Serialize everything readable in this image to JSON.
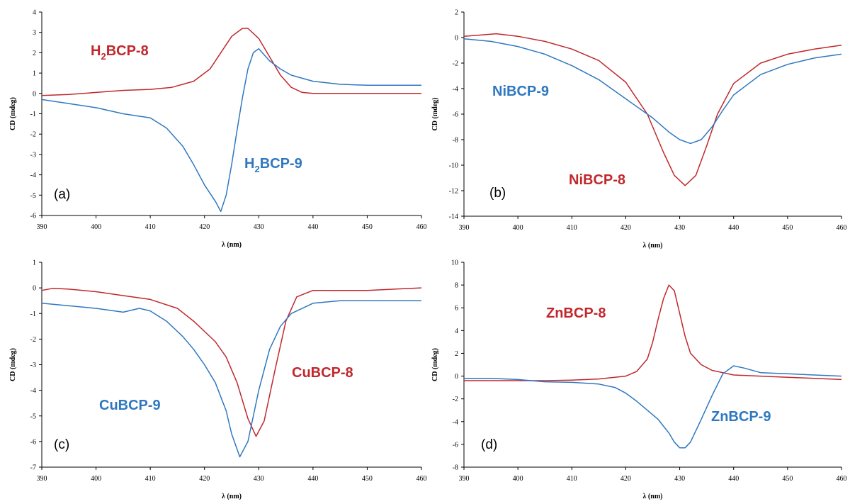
{
  "colors": {
    "red": "#c0282d",
    "blue": "#2f78c0",
    "axis": "#000000"
  },
  "chart_data": [
    {
      "type": "line",
      "panel_label": "(a)",
      "xlabel": "λ (nm)",
      "ylabel": "CD (mdeg)",
      "xlim": [
        390,
        460
      ],
      "ylim": [
        -6,
        4
      ],
      "xticks": [
        390,
        400,
        410,
        420,
        430,
        440,
        450,
        460
      ],
      "yticks": [
        -6,
        -5,
        -4,
        -3,
        -2,
        -1,
        0,
        1,
        2,
        3,
        4
      ],
      "series": [
        {
          "name": "H2BCP-8",
          "label_main": "H",
          "label_sub": "2",
          "label_rest": "BCP-8",
          "color": "red",
          "x": [
            390,
            395,
            400,
            405,
            410,
            414,
            418,
            421,
            423,
            425,
            427,
            428,
            430,
            432,
            434,
            436,
            438,
            440,
            445,
            450,
            455,
            460
          ],
          "y": [
            -0.1,
            -0.05,
            0.05,
            0.15,
            0.2,
            0.3,
            0.6,
            1.2,
            2.0,
            2.8,
            3.2,
            3.2,
            2.7,
            1.8,
            0.9,
            0.3,
            0.05,
            0.0,
            0.0,
            0.0,
            0.0,
            0.0
          ]
        },
        {
          "name": "H2BCP-9",
          "label_main": "H",
          "label_sub": "2",
          "label_rest": "BCP-9",
          "color": "blue",
          "x": [
            390,
            395,
            400,
            405,
            410,
            413,
            416,
            418,
            420,
            422,
            423,
            424,
            425,
            426,
            427,
            428,
            429,
            430,
            431,
            432,
            434,
            436,
            440,
            445,
            450,
            455,
            460
          ],
          "y": [
            -0.3,
            -0.5,
            -0.7,
            -1.0,
            -1.2,
            -1.7,
            -2.6,
            -3.5,
            -4.5,
            -5.3,
            -5.8,
            -5.0,
            -3.5,
            -1.8,
            -0.2,
            1.2,
            2.0,
            2.2,
            1.9,
            1.6,
            1.2,
            0.9,
            0.6,
            0.45,
            0.4,
            0.4,
            0.4
          ]
        }
      ]
    },
    {
      "type": "line",
      "panel_label": "(b)",
      "xlabel": "λ (nm)",
      "ylabel": "CD (mdeg)",
      "xlim": [
        390,
        460
      ],
      "ylim": [
        -14,
        2
      ],
      "xticks": [
        390,
        400,
        410,
        420,
        430,
        440,
        450,
        460
      ],
      "yticks": [
        -14,
        -12,
        -10,
        -8,
        -6,
        -4,
        -2,
        0,
        2
      ],
      "series": [
        {
          "name": "NiBCP-8",
          "label_main": "NiBCP-8",
          "color": "red",
          "x": [
            390,
            396,
            400,
            405,
            410,
            415,
            420,
            424,
            427,
            429,
            431,
            433,
            435,
            437,
            440,
            445,
            450,
            455,
            460
          ],
          "y": [
            0.1,
            0.3,
            0.1,
            -0.3,
            -0.9,
            -1.8,
            -3.5,
            -6.0,
            -9.0,
            -10.8,
            -11.6,
            -10.8,
            -8.5,
            -6.0,
            -3.6,
            -2.0,
            -1.3,
            -0.9,
            -0.6
          ]
        },
        {
          "name": "NiBCP-9",
          "label_main": "NiBCP-9",
          "color": "blue",
          "x": [
            390,
            395,
            400,
            405,
            410,
            415,
            420,
            425,
            428,
            430,
            432,
            434,
            436,
            438,
            440,
            445,
            450,
            455,
            460
          ],
          "y": [
            -0.1,
            -0.3,
            -0.7,
            -1.3,
            -2.2,
            -3.3,
            -4.8,
            -6.3,
            -7.4,
            -8.0,
            -8.3,
            -8.0,
            -7.0,
            -5.7,
            -4.5,
            -2.9,
            -2.1,
            -1.6,
            -1.3
          ]
        }
      ]
    },
    {
      "type": "line",
      "panel_label": "(c)",
      "xlabel": "λ (nm)",
      "ylabel": "CD (mdeg)",
      "xlim": [
        390,
        460
      ],
      "ylim": [
        -7,
        1
      ],
      "xticks": [
        390,
        400,
        410,
        420,
        430,
        440,
        450,
        460
      ],
      "yticks": [
        -7,
        -6,
        -5,
        -4,
        -3,
        -2,
        -1,
        0,
        1
      ],
      "series": [
        {
          "name": "CuBCP-8",
          "label_main": "CuBCP-8",
          "color": "red",
          "x": [
            390,
            392,
            395,
            400,
            405,
            410,
            415,
            418,
            420,
            422,
            424,
            426,
            428,
            429.5,
            431,
            433,
            435,
            437,
            440,
            445,
            450,
            455,
            460
          ],
          "y": [
            -0.1,
            -0.02,
            -0.05,
            -0.15,
            -0.3,
            -0.45,
            -0.8,
            -1.3,
            -1.7,
            -2.1,
            -2.7,
            -3.7,
            -5.1,
            -5.8,
            -5.2,
            -3.2,
            -1.3,
            -0.35,
            -0.1,
            -0.1,
            -0.1,
            -0.05,
            0.0
          ]
        },
        {
          "name": "CuBCP-9",
          "label_main": "CuBCP-9",
          "color": "blue",
          "x": [
            390,
            395,
            400,
            405,
            408,
            410,
            413,
            416,
            418,
            420,
            422,
            424,
            425,
            426.5,
            428,
            430,
            432,
            434,
            436,
            440,
            445,
            450,
            455,
            460
          ],
          "y": [
            -0.6,
            -0.7,
            -0.8,
            -0.95,
            -0.8,
            -0.9,
            -1.3,
            -1.9,
            -2.4,
            -3.0,
            -3.7,
            -4.8,
            -5.7,
            -6.6,
            -6.0,
            -4.0,
            -2.4,
            -1.5,
            -1.0,
            -0.6,
            -0.5,
            -0.5,
            -0.5,
            -0.5
          ]
        }
      ]
    },
    {
      "type": "line",
      "panel_label": "(d)",
      "xlabel": "λ (nm)",
      "ylabel": "CD (mdeg)",
      "xlim": [
        390,
        460
      ],
      "ylim": [
        -8,
        10
      ],
      "xticks": [
        390,
        400,
        410,
        420,
        430,
        440,
        450,
        460
      ],
      "yticks": [
        -8,
        -6,
        -4,
        -2,
        0,
        2,
        4,
        6,
        8,
        10
      ],
      "series": [
        {
          "name": "ZnBCP-8",
          "label_main": "ZnBCP-8",
          "color": "red",
          "x": [
            390,
            395,
            400,
            405,
            410,
            415,
            420,
            422,
            424,
            425,
            426,
            427,
            428,
            429,
            430,
            431,
            432,
            434,
            436,
            440,
            445,
            450,
            455,
            460
          ],
          "y": [
            -0.4,
            -0.4,
            -0.4,
            -0.4,
            -0.35,
            -0.25,
            0.0,
            0.4,
            1.5,
            3.0,
            5.0,
            6.8,
            8.0,
            7.5,
            5.5,
            3.5,
            2.0,
            1.0,
            0.5,
            0.1,
            0.0,
            -0.1,
            -0.2,
            -0.3
          ]
        },
        {
          "name": "ZnBCP-9",
          "label_main": "ZnBCP-9",
          "color": "blue",
          "x": [
            390,
            395,
            400,
            405,
            410,
            415,
            418,
            420,
            422,
            424,
            426,
            428,
            429,
            430,
            431,
            432,
            434,
            436,
            438,
            440,
            442,
            445,
            450,
            455,
            460
          ],
          "y": [
            -0.2,
            -0.2,
            -0.3,
            -0.5,
            -0.55,
            -0.7,
            -1.0,
            -1.5,
            -2.2,
            -3.0,
            -3.8,
            -5.0,
            -5.8,
            -6.3,
            -6.3,
            -5.8,
            -3.8,
            -1.7,
            0.2,
            0.9,
            0.7,
            0.3,
            0.2,
            0.1,
            0.0
          ]
        }
      ]
    }
  ]
}
